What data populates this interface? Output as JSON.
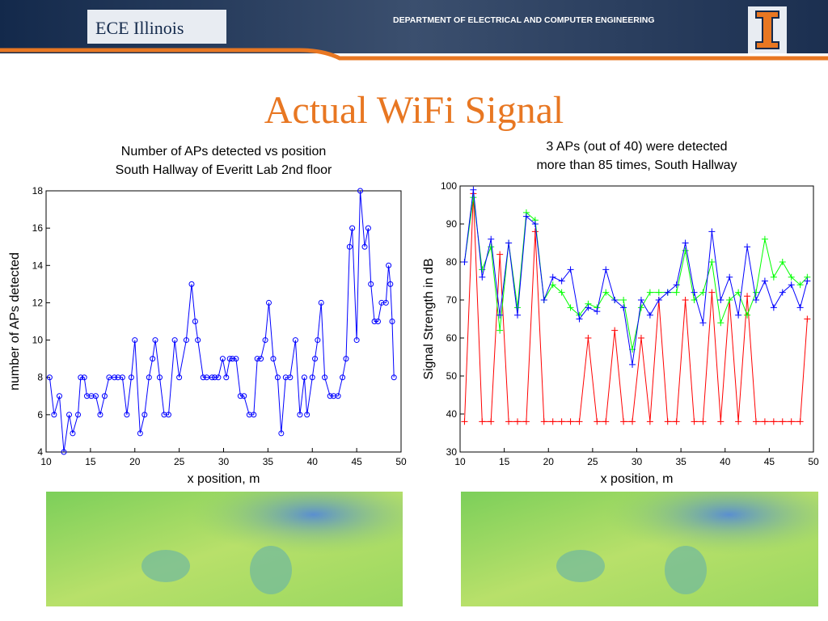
{
  "header": {
    "logo": "ECE Illinois",
    "department": "DEPARTMENT OF ELECTRICAL AND COMPUTER ENGINEERING"
  },
  "title": "Actual WiFi Signal",
  "chart_data": [
    {
      "type": "line",
      "title": [
        "Number of APs detected vs position",
        "South Hallway of Everitt Lab 2nd floor"
      ],
      "x_label": "x position, m",
      "y_label": "number of APs detected",
      "marker": "o",
      "x": [
        10.4,
        10.9,
        11.5,
        12.0,
        12.6,
        13.0,
        13.6,
        13.9,
        14.3,
        14.6,
        15.1,
        15.6,
        16.1,
        16.6,
        17.1,
        17.7,
        18.1,
        18.6,
        19.1,
        19.6,
        20.0,
        20.6,
        21.1,
        21.6,
        22.0,
        22.3,
        22.8,
        23.3,
        23.8,
        24.5,
        25.0,
        25.8,
        26.4,
        26.8,
        27.1,
        27.7,
        28.1,
        28.7,
        29.0,
        29.4,
        29.9,
        30.3,
        30.7,
        31.0,
        31.4,
        31.9,
        32.3,
        32.9,
        33.4,
        33.8,
        34.2,
        34.7,
        35.1,
        35.6,
        36.1,
        36.5,
        37.0,
        37.5,
        38.1,
        38.6,
        39.1,
        39.4,
        40.0,
        40.3,
        40.6,
        41.0,
        41.4,
        42.0,
        42.4,
        42.9,
        43.4,
        43.8,
        44.2,
        44.5,
        45.0,
        45.4,
        45.9,
        46.3,
        46.6,
        47.0,
        47.4,
        47.8,
        48.3,
        48.6,
        48.8,
        49.0,
        49.2
      ],
      "series": [
        {
          "color": "#0000ff",
          "values": [
            8,
            6,
            7,
            4,
            6,
            5,
            6,
            8,
            8,
            7,
            7,
            7,
            6,
            7,
            8,
            8,
            8,
            8,
            6,
            8,
            10,
            5,
            6,
            8,
            9,
            10,
            8,
            6,
            6,
            10,
            8,
            10,
            13,
            11,
            10,
            8,
            8,
            8,
            8,
            8,
            9,
            8,
            9,
            9,
            9,
            7,
            7,
            6,
            6,
            9,
            9,
            10,
            12,
            9,
            8,
            5,
            8,
            8,
            10,
            6,
            8,
            6,
            8,
            9,
            10,
            12,
            8,
            7,
            7,
            7,
            8,
            9,
            15,
            16,
            10,
            18,
            15,
            16,
            13,
            11,
            11,
            12,
            12,
            14,
            13,
            11,
            8
          ]
        }
      ],
      "xlim": [
        10,
        50
      ],
      "ylim": [
        4,
        18
      ],
      "xticks": [
        10,
        15,
        20,
        25,
        30,
        35,
        40,
        45,
        50
      ],
      "yticks": [
        4,
        6,
        8,
        10,
        12,
        14,
        16,
        18
      ]
    },
    {
      "type": "line",
      "title": [
        "3 APs (out of 40) were detected",
        "more than 85 times, South Hallway"
      ],
      "x_label": "x position, m",
      "y_label": "Signal Strength in dB",
      "marker": "+",
      "x": [
        10.5,
        11.5,
        12.5,
        13.5,
        14.5,
        15.5,
        16.5,
        17.5,
        18.5,
        19.5,
        20.5,
        21.5,
        22.5,
        23.5,
        24.5,
        25.5,
        26.5,
        27.5,
        28.5,
        29.5,
        30.5,
        31.5,
        32.5,
        33.5,
        34.5,
        35.5,
        36.5,
        37.5,
        38.5,
        39.5,
        40.5,
        41.5,
        42.5,
        43.5,
        44.5,
        45.5,
        46.5,
        47.5,
        48.5,
        49.3
      ],
      "series": [
        {
          "color": "#ff0000",
          "values": [
            38,
            98,
            38,
            38,
            82,
            38,
            38,
            38,
            88,
            38,
            38,
            38,
            38,
            38,
            60,
            38,
            38,
            62,
            38,
            38,
            60,
            38,
            70,
            38,
            38,
            70,
            38,
            38,
            72,
            38,
            70,
            38,
            71,
            38,
            38,
            38,
            38,
            38,
            38,
            65
          ]
        },
        {
          "color": "#00ff00",
          "values": [
            80,
            97,
            78,
            84,
            62,
            85,
            68,
            93,
            91,
            70,
            74,
            72,
            68,
            66,
            69,
            68,
            72,
            70,
            70,
            57,
            68,
            72,
            72,
            72,
            72,
            83,
            70,
            72,
            80,
            64,
            70,
            72,
            66,
            72,
            86,
            76,
            80,
            76,
            74,
            76
          ]
        },
        {
          "color": "#0000ff",
          "values": [
            80,
            99,
            76,
            86,
            66,
            85,
            66,
            92,
            90,
            70,
            76,
            75,
            78,
            65,
            68,
            67,
            78,
            70,
            68,
            53,
            70,
            66,
            70,
            72,
            74,
            85,
            72,
            64,
            88,
            70,
            76,
            66,
            84,
            70,
            75,
            68,
            72,
            74,
            68,
            75
          ]
        }
      ],
      "xlim": [
        10,
        50
      ],
      "ylim": [
        30,
        100
      ],
      "xticks": [
        10,
        15,
        20,
        25,
        30,
        35,
        40,
        45,
        50
      ],
      "yticks": [
        30,
        40,
        50,
        60,
        70,
        80,
        90,
        100
      ]
    }
  ]
}
